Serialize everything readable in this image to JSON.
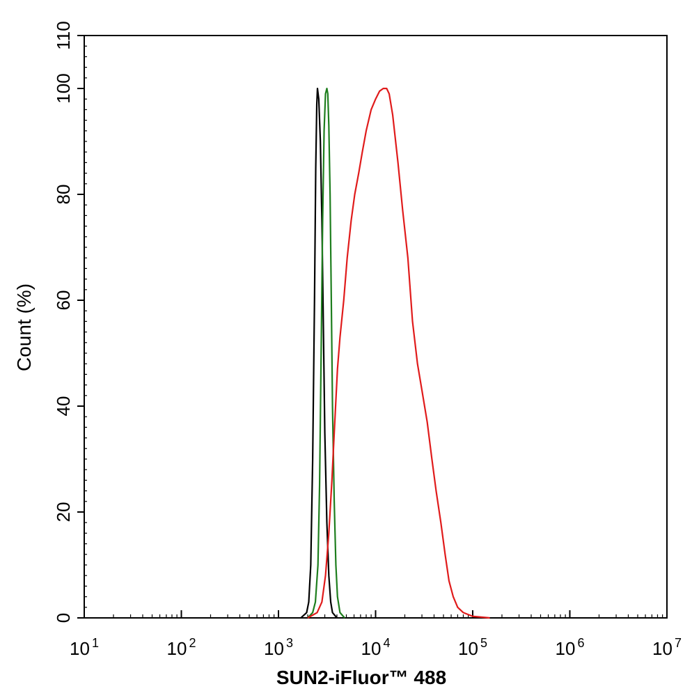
{
  "chart_data": {
    "type": "line",
    "xscale": "log",
    "xlim": [
      10,
      10000000
    ],
    "ylim": [
      0,
      110
    ],
    "xlabel": "SUN2-iFluor™ 488",
    "ylabel": "Count  (%)",
    "x_ticks": [
      {
        "base": "10",
        "exp": "1",
        "value": 10
      },
      {
        "base": "10",
        "exp": "2",
        "value": 100
      },
      {
        "base": "10",
        "exp": "3",
        "value": 1000
      },
      {
        "base": "10",
        "exp": "4",
        "value": 10000
      },
      {
        "base": "10",
        "exp": "5",
        "value": 100000
      },
      {
        "base": "10",
        "exp": "6",
        "value": 1000000
      },
      {
        "base": "10",
        "exp": "7",
        "value": 10000000
      }
    ],
    "y_ticks": [
      {
        "label": "0",
        "value": 0
      },
      {
        "label": "20",
        "value": 20
      },
      {
        "label": "40",
        "value": 40
      },
      {
        "label": "60",
        "value": 60
      },
      {
        "label": "80",
        "value": 80
      },
      {
        "label": "100",
        "value": 100
      },
      {
        "label": "110",
        "value": 110
      }
    ],
    "grid": false,
    "legend": "none",
    "series": [
      {
        "color": "#000000",
        "points": [
          [
            1700,
            0
          ],
          [
            1950,
            1
          ],
          [
            2050,
            3
          ],
          [
            2150,
            10
          ],
          [
            2250,
            30
          ],
          [
            2350,
            60
          ],
          [
            2420,
            85
          ],
          [
            2480,
            97
          ],
          [
            2520,
            100
          ],
          [
            2600,
            98
          ],
          [
            2700,
            90
          ],
          [
            2800,
            75
          ],
          [
            2900,
            55
          ],
          [
            3000,
            35
          ],
          [
            3150,
            18
          ],
          [
            3300,
            8
          ],
          [
            3450,
            3
          ],
          [
            3600,
            1
          ],
          [
            4000,
            0
          ]
        ]
      },
      {
        "color": "#1e7e1e",
        "points": [
          [
            2000,
            0
          ],
          [
            2250,
            1
          ],
          [
            2400,
            3
          ],
          [
            2550,
            10
          ],
          [
            2650,
            25
          ],
          [
            2750,
            50
          ],
          [
            2850,
            75
          ],
          [
            2950,
            92
          ],
          [
            3050,
            99
          ],
          [
            3150,
            100
          ],
          [
            3220,
            99
          ],
          [
            3300,
            93
          ],
          [
            3400,
            80
          ],
          [
            3500,
            60
          ],
          [
            3600,
            40
          ],
          [
            3750,
            22
          ],
          [
            3900,
            10
          ],
          [
            4050,
            4
          ],
          [
            4300,
            1
          ],
          [
            4800,
            0
          ]
        ]
      },
      {
        "color": "#e01b1b",
        "points": [
          [
            2000,
            0
          ],
          [
            2500,
            1
          ],
          [
            2800,
            3
          ],
          [
            3050,
            8
          ],
          [
            3300,
            16
          ],
          [
            3550,
            26
          ],
          [
            3800,
            37
          ],
          [
            4050,
            47
          ],
          [
            4300,
            53
          ],
          [
            4700,
            60
          ],
          [
            5100,
            68
          ],
          [
            5600,
            75
          ],
          [
            6100,
            80
          ],
          [
            6700,
            84
          ],
          [
            7300,
            88
          ],
          [
            8000,
            92
          ],
          [
            9000,
            96
          ],
          [
            10000,
            98
          ],
          [
            11000,
            99.5
          ],
          [
            12000,
            100
          ],
          [
            13000,
            100
          ],
          [
            13800,
            99
          ],
          [
            15000,
            95
          ],
          [
            17000,
            86
          ],
          [
            19000,
            77
          ],
          [
            21500,
            68
          ],
          [
            24000,
            56
          ],
          [
            27000,
            48
          ],
          [
            30000,
            43
          ],
          [
            34000,
            37
          ],
          [
            38000,
            30
          ],
          [
            42000,
            24
          ],
          [
            47000,
            18
          ],
          [
            52000,
            12
          ],
          [
            57000,
            7
          ],
          [
            63000,
            4
          ],
          [
            70000,
            2
          ],
          [
            80000,
            1
          ],
          [
            100000,
            0.3
          ],
          [
            150000,
            0
          ]
        ]
      }
    ]
  }
}
